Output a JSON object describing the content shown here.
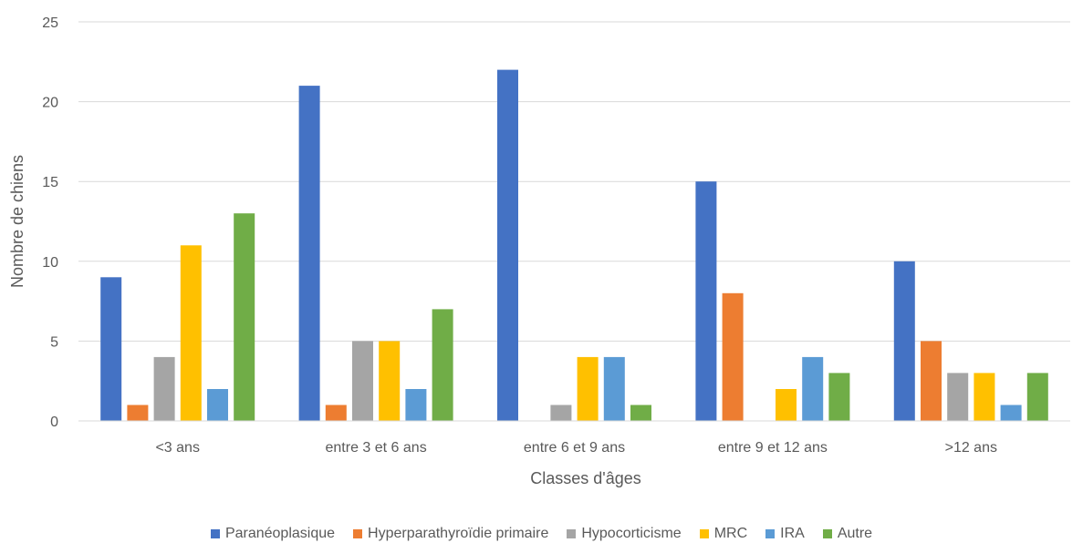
{
  "chart_data": {
    "type": "bar",
    "title": "",
    "xlabel": "Classes d'âges",
    "ylabel": "Nombre de chiens",
    "ylim": [
      0,
      25
    ],
    "yticks": [
      0,
      5,
      10,
      15,
      20,
      25
    ],
    "grid": true,
    "legend_position": "bottom",
    "categories": [
      "<3 ans",
      "entre 3 et 6 ans",
      "entre 6 et 9 ans",
      "entre 9 et 12 ans",
      ">12 ans"
    ],
    "series": [
      {
        "name": "Paranéoplasique",
        "color": "#4472C4",
        "values": [
          9,
          21,
          22,
          15,
          10
        ]
      },
      {
        "name": "Hyperparathyroïdie primaire",
        "color": "#ED7D31",
        "values": [
          1,
          1,
          0,
          8,
          5
        ]
      },
      {
        "name": "Hypocorticisme",
        "color": "#A5A5A5",
        "values": [
          4,
          5,
          1,
          0,
          3
        ]
      },
      {
        "name": "MRC",
        "color": "#FFC000",
        "values": [
          11,
          5,
          4,
          2,
          3
        ]
      },
      {
        "name": "IRA",
        "color": "#5B9BD5",
        "values": [
          2,
          2,
          4,
          4,
          1
        ]
      },
      {
        "name": "Autre",
        "color": "#70AD47",
        "values": [
          13,
          7,
          1,
          3,
          3
        ]
      }
    ]
  }
}
